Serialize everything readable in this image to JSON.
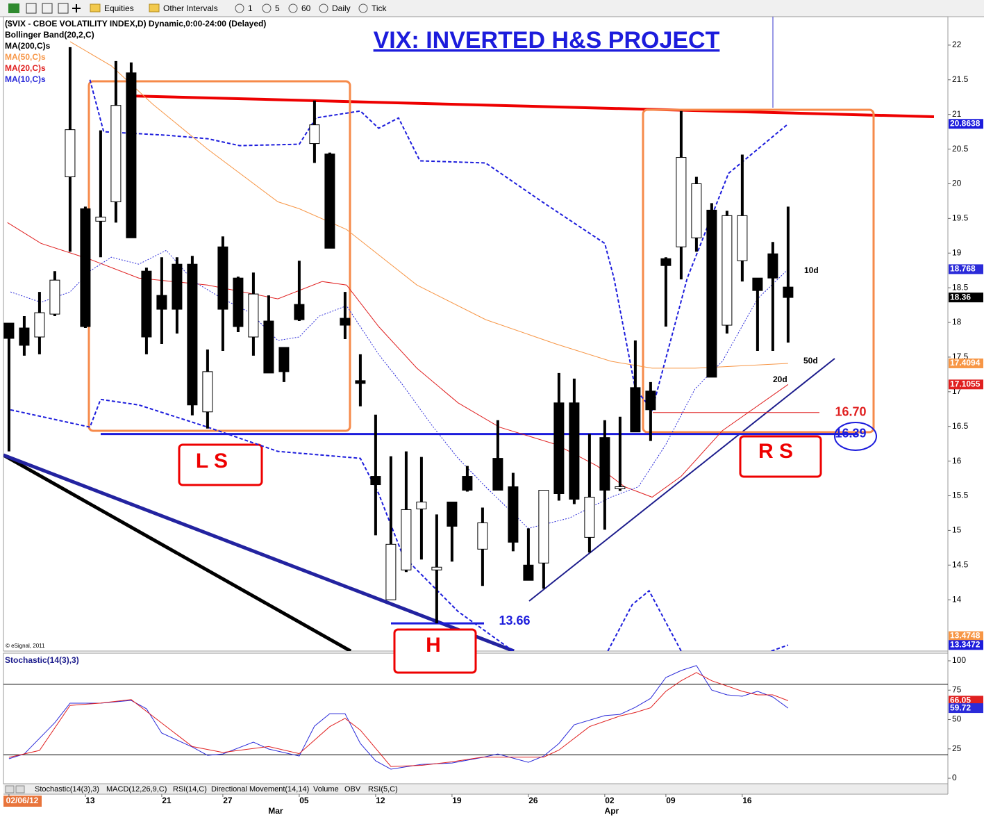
{
  "toolbar": {
    "items": [
      "Equities",
      "Other Intervals",
      "1",
      "5",
      "60",
      "Daily",
      "Tick"
    ]
  },
  "chart_data": [
    {
      "type": "candlestick",
      "title": "VIX: INVERTED H&S PROJECT",
      "header": "($VIX - CBOE VOLATILITY INDEX,D) Dynamic,0:00-24:00 (Delayed)",
      "ma200_label": "MA(200,C)s",
      "copyright": "© eSignal, 2011",
      "x": [
        0,
        1,
        2,
        3,
        4,
        5,
        6,
        7,
        8,
        9,
        10,
        11,
        12,
        13,
        14,
        15,
        16,
        17,
        18,
        19,
        20,
        21,
        22,
        23,
        24,
        25,
        26,
        27,
        28,
        29,
        30,
        31,
        32,
        33,
        34,
        35,
        36,
        37,
        38,
        39,
        40,
        41,
        42,
        43,
        44,
        45,
        46,
        47,
        48,
        49,
        50,
        51
      ],
      "open": [
        17.99,
        17.92,
        17.79,
        18.12,
        20.1,
        19.64,
        19.46,
        19.74,
        21.6,
        18.74,
        18.39,
        18.84,
        18.84,
        16.71,
        19.09,
        18.64,
        17.79,
        18.02,
        17.64,
        18.26,
        20.58,
        20.43,
        18.06,
        17.16,
        15.78,
        14.0,
        14.43,
        15.31,
        14.43,
        15.41,
        15.78,
        14.73,
        16.04,
        15.63,
        14.5,
        14.53,
        16.84,
        16.84,
        14.9,
        16.34,
        15.6,
        17.06,
        17.01,
        18.92,
        19.09,
        19.22,
        19.62,
        17.96,
        18.89,
        18.64,
        18.99,
        18.51
      ],
      "high": [
        17.99,
        18.09,
        18.44,
        18.74,
        21.97,
        19.67,
        20.77,
        21.77,
        21.75,
        18.79,
        18.94,
        18.94,
        18.96,
        17.61,
        19.24,
        18.66,
        18.72,
        18.39,
        17.64,
        18.89,
        21.2,
        20.45,
        18.44,
        17.54,
        16.67,
        16.07,
        16.14,
        16.06,
        15.23,
        15.41,
        15.93,
        15.33,
        16.59,
        15.83,
        15.03,
        15.58,
        17.27,
        17.19,
        16.39,
        16.59,
        16.64,
        17.74,
        17.14,
        18.94,
        21.05,
        20.1,
        19.72,
        19.61,
        20.42,
        18.64,
        19.16,
        19.67
      ],
      "low": [
        16.14,
        17.52,
        17.54,
        18.09,
        19.02,
        17.92,
        18.94,
        19.44,
        19.22,
        17.54,
        17.69,
        17.84,
        16.66,
        16.47,
        17.59,
        17.86,
        17.52,
        17.27,
        17.14,
        18.02,
        20.3,
        19.07,
        17.76,
        16.79,
        14.93,
        14.0,
        14.4,
        14.58,
        13.66,
        14.55,
        15.56,
        14.2,
        15.58,
        14.7,
        14.28,
        14.16,
        15.43,
        15.38,
        14.68,
        15.01,
        15.57,
        16.42,
        16.29,
        17.94,
        18.62,
        19.02,
        17.21,
        17.84,
        18.59,
        17.59,
        17.59,
        17.71
      ],
      "close": [
        17.77,
        17.67,
        18.14,
        18.61,
        20.78,
        17.94,
        19.52,
        21.13,
        19.22,
        17.79,
        18.19,
        18.19,
        16.81,
        17.29,
        18.19,
        17.94,
        18.41,
        17.27,
        17.29,
        18.04,
        20.85,
        19.07,
        17.96,
        17.12,
        15.66,
        14.8,
        15.3,
        15.41,
        14.47,
        15.06,
        15.58,
        15.11,
        15.58,
        14.83,
        14.28,
        15.58,
        15.53,
        15.45,
        15.48,
        15.58,
        15.63,
        16.42,
        16.74,
        18.82,
        20.38,
        20.0,
        17.21,
        19.54,
        19.54,
        18.46,
        18.64,
        18.36
      ],
      "xlim": [
        -0.36,
        61.46
      ],
      "xticks": [
        {
          "value": 0,
          "label": "02/06/12"
        },
        {
          "value": 5,
          "label": "13"
        },
        {
          "value": 10,
          "label": "21"
        },
        {
          "value": 14,
          "label": "27"
        },
        {
          "value": 19,
          "label": "05"
        },
        {
          "value": 24,
          "label": "12"
        },
        {
          "value": 29,
          "label": "19"
        },
        {
          "value": 34,
          "label": "26"
        },
        {
          "value": 39,
          "label": "02"
        },
        {
          "value": 43,
          "label": "09"
        },
        {
          "value": 48,
          "label": "16"
        }
      ],
      "month_labels": [
        {
          "value": 17,
          "label": "Mar"
        },
        {
          "value": 39,
          "label": "Apr"
        }
      ],
      "ylim": [
        13.26,
        22.43
      ],
      "yticks": [
        14,
        14.5,
        15,
        15.5,
        16,
        16.5,
        17,
        17.5,
        18,
        18.5,
        19,
        19.5,
        20,
        20.5,
        21,
        21.5,
        22
      ],
      "bollinger": {
        "name": "Bollinger Band(20,2,C)",
        "color": "#1c1cdc",
        "upper": {
          "x": [
            5.3,
            6.2,
            10.3,
            13.0,
            15.1,
            19.0,
            20.1,
            23.0,
            24.2,
            25.5,
            26.9,
            31.2,
            34.9,
            39.0,
            39.6,
            41.0,
            42.1,
            44.4,
            47.1,
            51.0
          ],
          "values": [
            21.5,
            20.75,
            20.7,
            20.65,
            20.55,
            20.57,
            20.95,
            21.05,
            20.8,
            20.95,
            20.33,
            20.3,
            19.74,
            19.14,
            18.64,
            17.04,
            16.74,
            18.64,
            20.15,
            20.8638
          ]
        },
        "lower": {
          "x": [
            0.1,
            5.3,
            6.0,
            8.5,
            13.0,
            17.6,
            23.0,
            24.2,
            25.8,
            29.4,
            33.0,
            null,
            39.2,
            40.8,
            41.9,
            44.0,
            null,
            49.9,
            51.0
          ],
          "values": [
            16.74,
            16.49,
            16.89,
            16.81,
            16.49,
            16.14,
            16.04,
            15.53,
            14.63,
            13.83,
            13.26,
            null,
            13.26,
            13.93,
            14.13,
            13.26,
            null,
            13.26,
            13.3472
          ]
        }
      },
      "series": [
        {
          "name": "MA(50,C)s",
          "color": "#f79646",
          "x": [
            4.0,
            6.7,
            9.4,
            13.0,
            17.6,
            19.0,
            22.1,
            26.7,
            31.2,
            35.8,
            39.4,
            42.1,
            44.9,
            51.0
          ],
          "values": [
            22.05,
            21.7,
            21.15,
            20.5,
            19.74,
            19.64,
            19.34,
            18.54,
            18.04,
            17.69,
            17.44,
            17.34,
            17.34,
            17.4094
          ]
        },
        {
          "name": "MA(20,C)s",
          "color": "#e02020",
          "x": [
            -0.1,
            2.1,
            5.3,
            8.5,
            13.0,
            17.6,
            20.5,
            22.1,
            24.2,
            26.7,
            29.4,
            32.1,
            35.8,
            38.5,
            40.3,
            42.1,
            44.0,
            46.7,
            51.0
          ],
          "values": [
            19.44,
            19.14,
            18.91,
            18.64,
            18.54,
            18.34,
            18.59,
            18.54,
            17.94,
            17.34,
            16.84,
            16.49,
            16.24,
            15.93,
            15.63,
            15.48,
            15.78,
            16.44,
            17.1055
          ]
        },
        {
          "name": "MA(10,C)s",
          "color": "#2b2bd9",
          "x": [
            0.1,
            2.1,
            4.0,
            5.3,
            6.7,
            8.5,
            10.3,
            12.1,
            14.0,
            15.8,
            17.6,
            19.0,
            20.3,
            22.1,
            24.2,
            25.8,
            27.6,
            29.4,
            31.2,
            34.0,
            36.7,
            39.4,
            41.2,
            43.0,
            44.9,
            46.7,
            49.0,
            51.0
          ],
          "values": [
            18.44,
            18.29,
            18.44,
            18.74,
            18.94,
            18.84,
            19.04,
            18.59,
            18.34,
            18.14,
            17.74,
            17.79,
            18.09,
            18.24,
            17.54,
            17.09,
            16.54,
            16.04,
            15.63,
            15.03,
            15.18,
            15.48,
            15.63,
            16.24,
            17.04,
            17.44,
            18.34,
            18.768
          ]
        }
      ],
      "price_markers": [
        {
          "value": 13.4748,
          "color": "#f79646"
        }
      ],
      "levels": [
        {
          "value": 16.7,
          "label": "16.70",
          "color": "#e02020"
        },
        {
          "value": 16.39,
          "color": "#1c1cdc"
        },
        {
          "value": 13.66,
          "color": "#1c1cdc"
        }
      ],
      "pattern_labels": [
        "L S",
        "H",
        "R S"
      ],
      "ma_tags": [
        "10d",
        "50d",
        "20d"
      ]
    },
    {
      "type": "line",
      "title": "Stochastic(14(3),3)",
      "xlim": [
        -0.36,
        61.46
      ],
      "ylim": [
        -4.7,
        106.5
      ],
      "yticks": [
        0,
        25,
        50,
        75,
        100
      ],
      "levels": [
        80,
        20
      ],
      "series": [
        {
          "name": "%K",
          "color": "#2b2bd9",
          "x": [
            0,
            1,
            3,
            4,
            6,
            8,
            9,
            10,
            12,
            13,
            14,
            16,
            17,
            19,
            20,
            21,
            22,
            23,
            24,
            25,
            27,
            29,
            31,
            32,
            34,
            35,
            36,
            37,
            39,
            40,
            41,
            42,
            43,
            44,
            45,
            46,
            47,
            48,
            49,
            50,
            51
          ],
          "values": [
            16.6,
            20.7,
            47.3,
            63.9,
            63.9,
            66.3,
            59.2,
            38.5,
            26.6,
            19.5,
            20.7,
            30.8,
            24.9,
            18.9,
            44.4,
            55.0,
            55.0,
            29.6,
            14.8,
            7.7,
            11.8,
            13.0,
            17.8,
            20.7,
            13.6,
            18.9,
            29.6,
            45.6,
            53.3,
            54.4,
            60.4,
            68.0,
            85.8,
            91.7,
            95.9,
            75.1,
            71.0,
            69.8,
            74.0,
            69.2,
            59.72
          ]
        },
        {
          "name": "%D",
          "color": "#e02020",
          "x": [
            0,
            2,
            4,
            6,
            8,
            10,
            12,
            14,
            17,
            19,
            21,
            22,
            23,
            25,
            27,
            29,
            31,
            33,
            35,
            36,
            38,
            40,
            41,
            42,
            43,
            44,
            45,
            46,
            48,
            49,
            50,
            51
          ],
          "values": [
            17.8,
            23.7,
            62,
            64,
            67,
            47,
            27,
            22,
            27,
            21,
            44,
            51,
            41,
            10,
            11,
            14,
            18,
            18,
            18,
            24,
            44,
            53,
            56,
            60,
            74,
            83,
            90,
            83,
            74,
            71,
            71,
            66.05
          ]
        }
      ]
    }
  ],
  "tabs": [
    "Stochastic(14(3),3)",
    "MACD(12,26,9,C)",
    "RSI(14,C)",
    "Directional Movement(14,14)",
    "Volume",
    "OBV",
    "RSI(5,C)"
  ]
}
